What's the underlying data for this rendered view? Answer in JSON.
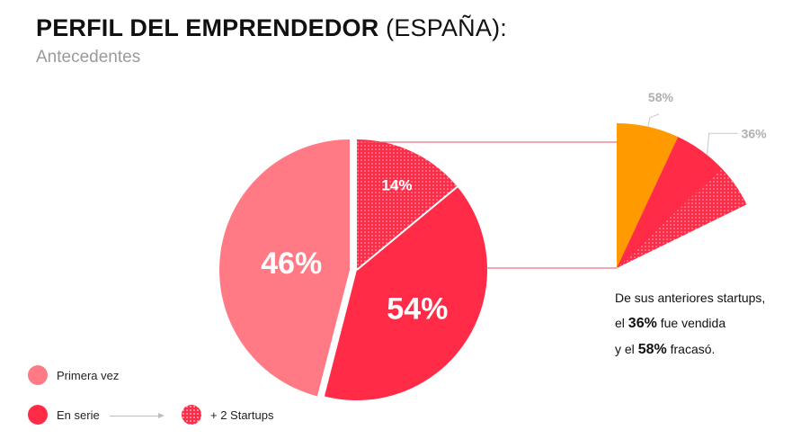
{
  "header": {
    "title_bold": "PERFIL DEL EMPRENDEDOR",
    "title_light": "(ESPAÑA):",
    "subtitle": "Antecedentes"
  },
  "colors": {
    "primera_vez": "#ff7a85",
    "en_serie": "#ff2b47",
    "vendida": "#ff9a00",
    "fracaso": "#ff2b47",
    "connector": "#e05060",
    "leader": "#c8c8c8",
    "label_grey": "#b0b0b0"
  },
  "chart_data": [
    {
      "type": "pie",
      "slices": [
        {
          "name": "Primera vez",
          "value": 46,
          "label": "46%"
        },
        {
          "name": "En serie",
          "value": 54,
          "label": "54%"
        }
      ],
      "sub_slice": {
        "name": "+ 2 Startups",
        "value": 14,
        "label": "14%"
      }
    },
    {
      "type": "pie",
      "slices": [
        {
          "name": "vendida",
          "value": 36,
          "label": "36%"
        },
        {
          "name": "fracasó",
          "value": 58,
          "label": "58%"
        }
      ]
    }
  ],
  "note": {
    "line1": "De sus anteriores startups,",
    "line2_pre": "el ",
    "line2_bold": "36%",
    "line2_post": " fue vendida",
    "line3_pre": "y el ",
    "line3_bold": "58%",
    "line3_post": " fracasó."
  },
  "legend": {
    "primera_vez": "Primera vez",
    "en_serie": "En serie",
    "startups": "+ 2 Startups"
  }
}
